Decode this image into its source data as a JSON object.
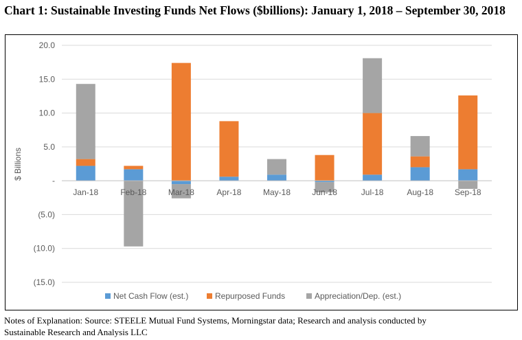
{
  "title": "Chart 1: Sustainable Investing Funds Net Flows ($billions):  January 1, 2018 – September 30, 2018",
  "notes": {
    "line1": "Notes of Explanation:  Source: STEELE Mutual Fund Systems, Morningstar data; Research and analysis conducted by",
    "line2": "Sustainable Research and Analysis LLC"
  },
  "colors": {
    "Net Cash Flow (est.)": "#5b9bd5",
    "Repurposed Funds": "#ed7d31",
    "Appreciation/Dep. (est.)": "#a5a5a5",
    "grid": "#d9d9d9",
    "text": "#595959"
  },
  "chart_data": {
    "type": "bar",
    "stacked": true,
    "categories": [
      "Jan-18",
      "Feb-18",
      "Mar-18",
      "Apr-18",
      "May-18",
      "Jun-18",
      "Jul-18",
      "Aug-18",
      "Sep-18"
    ],
    "series": [
      {
        "name": "Net Cash Flow (est.)",
        "values": [
          2.2,
          1.7,
          -0.5,
          0.6,
          0.9,
          -0.2,
          0.9,
          2.0,
          1.7
        ]
      },
      {
        "name": "Repurposed Funds",
        "values": [
          1.0,
          0.5,
          17.4,
          8.2,
          0.0,
          3.8,
          9.1,
          1.6,
          10.9
        ]
      },
      {
        "name": "Appreciation/Dep. (est.)",
        "values": [
          11.1,
          -9.7,
          -2.1,
          0.0,
          2.3,
          -1.5,
          8.1,
          3.0,
          -1.2
        ]
      }
    ],
    "ylabel": "$ Billions",
    "xlabel": "",
    "ylim": [
      -15,
      20
    ],
    "yticks": [
      20,
      15,
      10,
      5,
      0,
      -5,
      -10,
      -15
    ],
    "ytick_labels": [
      "20.0",
      "15.0",
      "10.0",
      "5.0",
      "-",
      "(5.0)",
      "(10.0)",
      "(15.0)"
    ],
    "grid": true,
    "legend": "bottom"
  }
}
